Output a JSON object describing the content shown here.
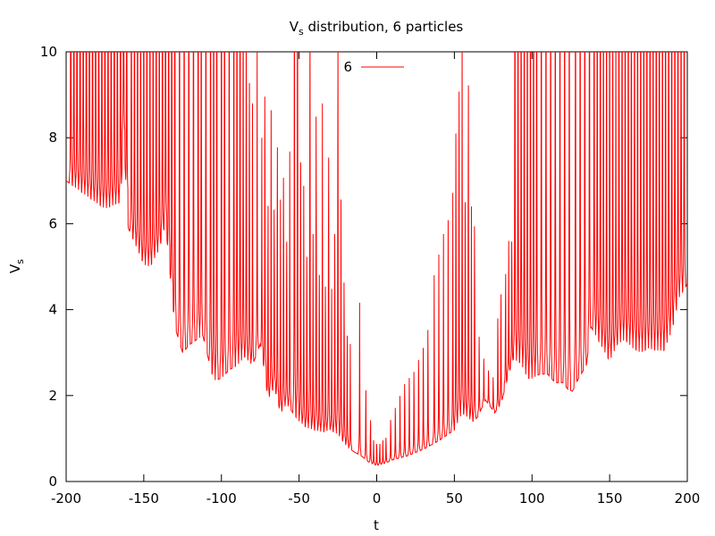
{
  "chart_data": {
    "type": "line",
    "title_main": "V",
    "title_sub": "s",
    "title_rest": " distribution, 6 particles",
    "xlabel": "t",
    "ylabel_main": "V",
    "ylabel_sub": "s",
    "xlim": [
      -200,
      200
    ],
    "ylim": [
      0,
      10
    ],
    "xticks": [
      -200,
      -150,
      -100,
      -50,
      0,
      50,
      100,
      150,
      200
    ],
    "yticks": [
      0,
      2,
      4,
      6,
      8,
      10
    ],
    "xtick_labels": [
      "-200",
      "-150",
      "-100",
      "-50",
      "0",
      "50",
      "100",
      "150",
      "200"
    ],
    "ytick_labels": [
      "0",
      "2",
      "4",
      "6",
      "8",
      "10"
    ],
    "grid": false,
    "legend_position": "top-center",
    "series": [
      {
        "name": "6",
        "color": "#ff0000",
        "baseline_x": [
          -200,
          -185,
          -175,
          -165,
          -163,
          -160,
          -150,
          -146,
          -140,
          -136,
          -133,
          -130,
          -125,
          -120,
          -112,
          -105,
          -100,
          -95,
          -90,
          -85,
          -80,
          -75,
          -72,
          -70,
          -66,
          -62,
          -58,
          -54,
          -50,
          -45,
          -40,
          -35,
          -30,
          -25,
          -20,
          -15,
          -10,
          -5,
          0,
          5,
          10,
          20,
          30,
          40,
          50,
          55,
          60,
          62,
          65,
          70,
          76,
          80,
          85,
          88,
          93,
          97,
          100,
          105,
          110,
          115,
          120,
          123,
          126,
          130,
          135,
          138,
          141,
          144,
          147,
          150,
          155,
          160,
          165,
          170,
          175,
          180,
          185,
          190,
          195,
          200
        ],
        "baseline_y": [
          7.0,
          6.6,
          6.35,
          6.5,
          8.0,
          5.9,
          5.05,
          5.0,
          5.4,
          6.0,
          4.8,
          3.6,
          3.0,
          3.2,
          3.4,
          2.35,
          2.4,
          2.6,
          2.7,
          2.9,
          2.7,
          3.2,
          2.5,
          1.9,
          2.2,
          1.6,
          1.8,
          1.6,
          1.4,
          1.25,
          1.2,
          1.15,
          1.2,
          1.1,
          0.85,
          0.7,
          0.6,
          0.45,
          0.37,
          0.42,
          0.5,
          0.6,
          0.75,
          0.95,
          1.2,
          1.6,
          1.45,
          1.4,
          1.5,
          1.9,
          1.6,
          1.8,
          2.5,
          2.85,
          2.75,
          2.4,
          2.4,
          2.5,
          2.5,
          2.3,
          2.3,
          2.15,
          2.1,
          2.4,
          2.7,
          3.6,
          3.4,
          3.2,
          3.0,
          2.8,
          3.2,
          3.3,
          3.1,
          3.0,
          3.1,
          3.05,
          3.05,
          3.5,
          4.3,
          4.6
        ],
        "spike_x": [
          -197,
          -195,
          -193,
          -191,
          -189,
          -187,
          -185,
          -183,
          -181,
          -179,
          -177,
          -175,
          -173,
          -171,
          -169,
          -167,
          -165,
          -163,
          -161,
          -158,
          -156,
          -154,
          -152,
          -150,
          -148,
          -146,
          -144,
          -142,
          -140,
          -138,
          -136,
          -134,
          -132,
          -130,
          -127,
          -124,
          -121,
          -118,
          -115,
          -113,
          -110,
          -107,
          -105,
          -103,
          -100,
          -98,
          -95,
          -92,
          -90,
          -88,
          -86,
          -84,
          -82,
          -80,
          -77,
          -74,
          -72,
          -70,
          -68,
          -66,
          -64,
          -62,
          -60,
          -58,
          -56,
          -53,
          -51,
          -49,
          -47,
          -45,
          -43,
          -41,
          -39,
          -37,
          -35,
          -33,
          -31,
          -29,
          -27,
          -25,
          -23,
          -21,
          -19,
          -17,
          -11,
          -7,
          -4,
          -2,
          0,
          2,
          4,
          6,
          9,
          12,
          15,
          18,
          21,
          24,
          27,
          30,
          33,
          37,
          40,
          43,
          46,
          49,
          51,
          53,
          55,
          57,
          59,
          61,
          63,
          66,
          69,
          72,
          75,
          78,
          80,
          83,
          85,
          87,
          89,
          91,
          93,
          95,
          97,
          99,
          101,
          103,
          106,
          109,
          112,
          115,
          118,
          121,
          124,
          128,
          131,
          134,
          137,
          140,
          142,
          144,
          146,
          148,
          150,
          152,
          154,
          156,
          158,
          160,
          162,
          164,
          166,
          168,
          170,
          172,
          174,
          176,
          178,
          180,
          182,
          184,
          186,
          188,
          190,
          192,
          194,
          196,
          198
        ],
        "spike_y": [
          10,
          10,
          10,
          10,
          10,
          10,
          10,
          10,
          10,
          10,
          10,
          10,
          10,
          10,
          10,
          10,
          10,
          10,
          9.6,
          9.4,
          9.2,
          9.0,
          9.0,
          8.9,
          8.9,
          8.8,
          8.8,
          8.9,
          9.0,
          9.1,
          9.6,
          10,
          10,
          10,
          10,
          10,
          10,
          10,
          10,
          10,
          10,
          10,
          10,
          9.6,
          10,
          10,
          10,
          10,
          10,
          10,
          8.1,
          7.7,
          6.5,
          5.5,
          6.3,
          5.0,
          6.3,
          4.5,
          5.4,
          4.4,
          5.5,
          4.1,
          5.0,
          3.9,
          4.8,
          10,
          10,
          5.3,
          4.3,
          3.7,
          7.9,
          3.6,
          6.1,
          3.4,
          5.5,
          3.2,
          5.4,
          2.8,
          4.1,
          7.5,
          4.1,
          3.3,
          2.4,
          2.0,
          2.6,
          1.5,
          1.0,
          0.6,
          0.6,
          0.6,
          0.6,
          0.7,
          1.0,
          1.2,
          1.4,
          1.6,
          1.7,
          1.8,
          2.0,
          2.2,
          2.5,
          3.0,
          3.3,
          3.6,
          3.8,
          4.2,
          5.8,
          6.5,
          6.8,
          4.6,
          6.6,
          4.0,
          4.2,
          2.3,
          1.9,
          1.7,
          1.6,
          2.6,
          3.0,
          3.3,
          3.5,
          3.8,
          10,
          10,
          10,
          10,
          10,
          10,
          10,
          10,
          10,
          10,
          10,
          10,
          10,
          10,
          10,
          10,
          10,
          10,
          10,
          10,
          10,
          10,
          8.6,
          8.3,
          8.4,
          8.0,
          7.0,
          10,
          10,
          10,
          10,
          10,
          10,
          10,
          10,
          10,
          10,
          10,
          10,
          10,
          10,
          10,
          10,
          10,
          10,
          10,
          10,
          10,
          10,
          10,
          10,
          10,
          10,
          10,
          10,
          10,
          10,
          10,
          10
        ]
      }
    ]
  }
}
